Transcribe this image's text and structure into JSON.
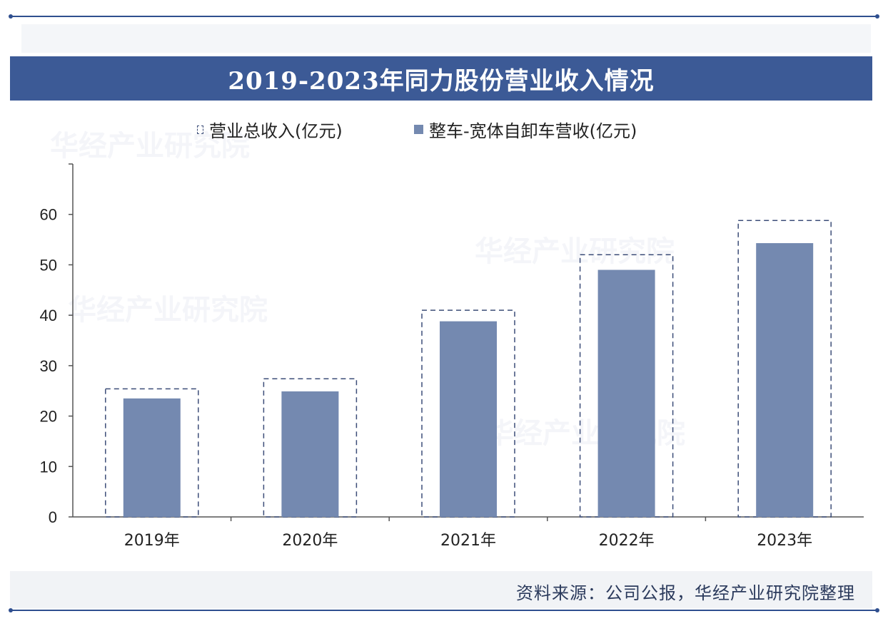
{
  "title": "2019-2023年同力股份营业收入情况",
  "legend": {
    "total": "营业总收入(亿元)",
    "vehicle": "整车-宽体自卸车营收(亿元)"
  },
  "source": "资料来源：公司公报，华经产业研究院整理",
  "watermark": "华经产业研究院",
  "colors": {
    "title_bar": "#3c5a96",
    "bar_fill": "#7489b0",
    "dashed_outline": "#3c4d78"
  },
  "chart_data": {
    "type": "bar",
    "categories": [
      "2019年",
      "2020年",
      "2021年",
      "2022年",
      "2023年"
    ],
    "series": [
      {
        "name": "营业总收入(亿元)",
        "style": "dashed-outline",
        "values": [
          25.4,
          27.4,
          41.0,
          52.0,
          58.8
        ]
      },
      {
        "name": "整车-宽体自卸车营收(亿元)",
        "style": "solid",
        "values": [
          23.5,
          24.9,
          38.8,
          49.0,
          54.3
        ]
      }
    ],
    "y_ticks": [
      0,
      10,
      20,
      30,
      40,
      50,
      60
    ],
    "ylim": [
      0,
      70
    ],
    "grid": false,
    "legend_position": "top"
  }
}
